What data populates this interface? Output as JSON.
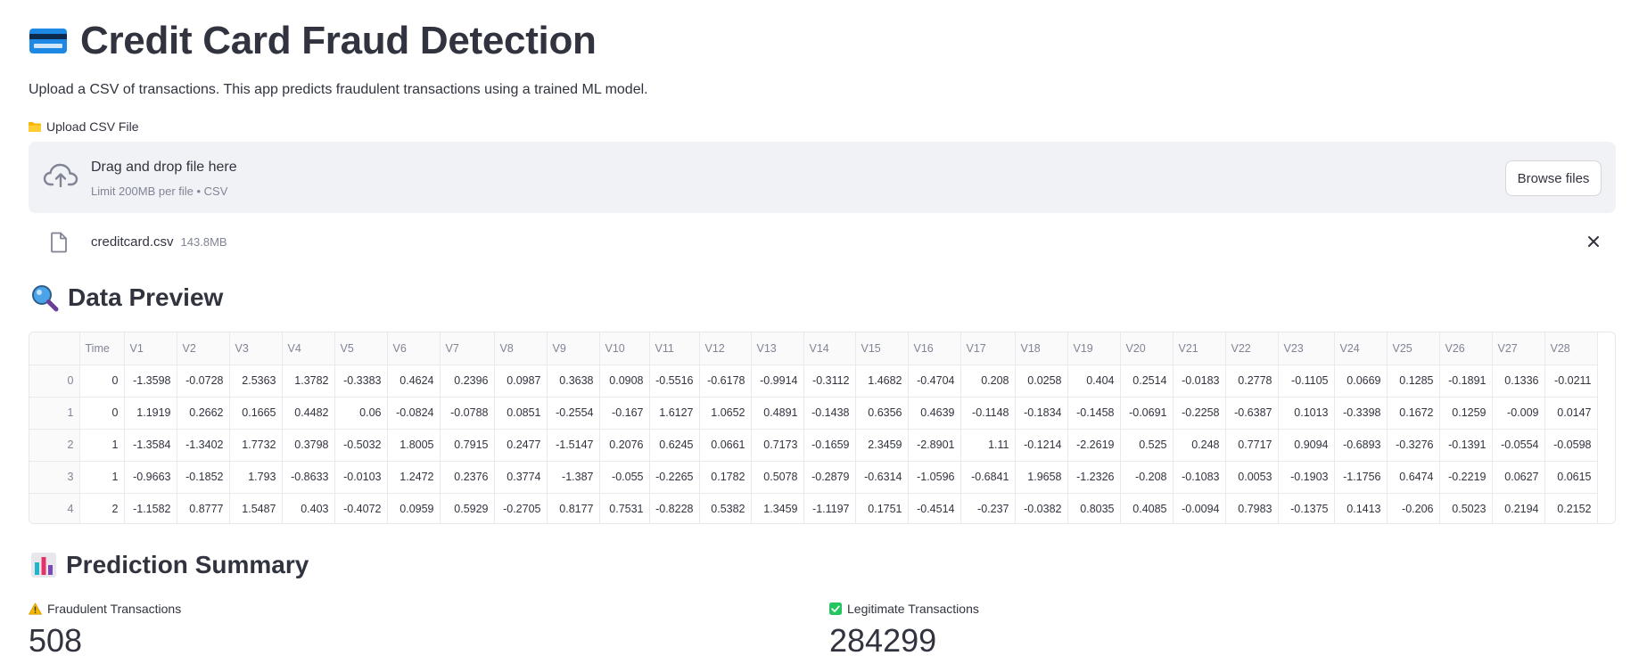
{
  "header": {
    "title": "Credit Card Fraud Detection",
    "subtitle": "Upload a CSV of transactions. This app predicts fraudulent transactions using a trained ML model.",
    "icon": "credit-card-icon"
  },
  "upload": {
    "label": "Upload CSV File",
    "dropzone_text": "Drag and drop file here",
    "dropzone_limit": "Limit 200MB per file • CSV",
    "browse_label": "Browse files",
    "file": {
      "name": "creditcard.csv",
      "size": "143.8MB"
    }
  },
  "preview": {
    "title": "Data Preview",
    "icon": "magnifying-glass-icon",
    "columns": [
      "",
      "Time",
      "V1",
      "V2",
      "V3",
      "V4",
      "V5",
      "V6",
      "V7",
      "V8",
      "V9",
      "V10",
      "V11",
      "V12",
      "V13",
      "V14",
      "V15",
      "V16",
      "V17",
      "V18",
      "V19",
      "V20",
      "V21",
      "V22",
      "V23",
      "V24",
      "V25",
      "V26",
      "V27",
      "V28"
    ],
    "rows": [
      [
        "0",
        "0",
        "-1.3598",
        "-0.0728",
        "2.5363",
        "1.3782",
        "-0.3383",
        "0.4624",
        "0.2396",
        "0.0987",
        "0.3638",
        "0.0908",
        "-0.5516",
        "-0.6178",
        "-0.9914",
        "-0.3112",
        "1.4682",
        "-0.4704",
        "0.208",
        "0.0258",
        "0.404",
        "0.2514",
        "-0.0183",
        "0.2778",
        "-0.1105",
        "0.0669",
        "0.1285",
        "-0.1891",
        "0.1336",
        "-0.0211"
      ],
      [
        "1",
        "0",
        "1.1919",
        "0.2662",
        "0.1665",
        "0.4482",
        "0.06",
        "-0.0824",
        "-0.0788",
        "0.0851",
        "-0.2554",
        "-0.167",
        "1.6127",
        "1.0652",
        "0.4891",
        "-0.1438",
        "0.6356",
        "0.4639",
        "-0.1148",
        "-0.1834",
        "-0.1458",
        "-0.0691",
        "-0.2258",
        "-0.6387",
        "0.1013",
        "-0.3398",
        "0.1672",
        "0.1259",
        "-0.009",
        "0.0147"
      ],
      [
        "2",
        "1",
        "-1.3584",
        "-1.3402",
        "1.7732",
        "0.3798",
        "-0.5032",
        "1.8005",
        "0.7915",
        "0.2477",
        "-1.5147",
        "0.2076",
        "0.6245",
        "0.0661",
        "0.7173",
        "-0.1659",
        "2.3459",
        "-2.8901",
        "1.11",
        "-0.1214",
        "-2.2619",
        "0.525",
        "0.248",
        "0.7717",
        "0.9094",
        "-0.6893",
        "-0.3276",
        "-0.1391",
        "-0.0554",
        "-0.0598"
      ],
      [
        "3",
        "1",
        "-0.9663",
        "-0.1852",
        "1.793",
        "-0.8633",
        "-0.0103",
        "1.2472",
        "0.2376",
        "0.3774",
        "-1.387",
        "-0.055",
        "-0.2265",
        "0.1782",
        "0.5078",
        "-0.2879",
        "-0.6314",
        "-1.0596",
        "-0.6841",
        "1.9658",
        "-1.2326",
        "-0.208",
        "-0.1083",
        "0.0053",
        "-0.1903",
        "-1.1756",
        "0.6474",
        "-0.2219",
        "0.0627",
        "0.0615"
      ],
      [
        "4",
        "2",
        "-1.1582",
        "0.8777",
        "1.5487",
        "0.403",
        "-0.4072",
        "0.0959",
        "0.5929",
        "-0.2705",
        "0.8177",
        "0.7531",
        "-0.8228",
        "0.5382",
        "1.3459",
        "-1.1197",
        "0.1751",
        "-0.4514",
        "-0.237",
        "-0.0382",
        "0.8035",
        "0.4085",
        "-0.0094",
        "0.7983",
        "-0.1375",
        "0.1413",
        "-0.206",
        "0.5023",
        "0.2194",
        "0.2152"
      ]
    ]
  },
  "summary": {
    "title": "Prediction Summary",
    "icon": "bar-chart-icon",
    "fraud_label": "Fraudulent Transactions",
    "fraud_icon": "warning-icon",
    "fraud_value": "508",
    "legit_label": "Legitimate Transactions",
    "legit_icon": "check-box-icon",
    "legit_value": "284299"
  },
  "colors": {
    "text": "#31333f",
    "muted": "#808495",
    "dropzone_bg": "#f0f2f6",
    "card_blue": "#1e88e5",
    "check_green": "#22c55e",
    "warning_yellow": "#f5b800"
  }
}
